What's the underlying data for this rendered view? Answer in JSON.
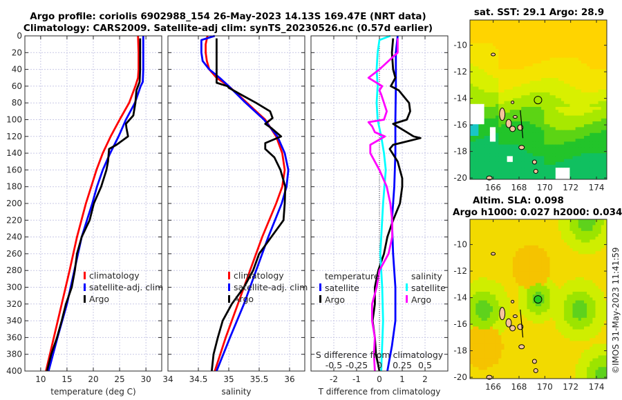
{
  "title": {
    "line1": "Argo profile: coriolis 6902988_154 26-May-2023 14.13S 169.47E (NRT data)",
    "line2": "Climatology: CARS2009. Satellite-adj clim: synTS_20230526.nc (0.57d earlier)"
  },
  "copyright": "©IMOS 31-May-2023 11:41:59",
  "colors": {
    "climatology": "#ff0000",
    "satellite": "#0000ff",
    "argo": "#000000",
    "sal_satellite": "#00ffff",
    "sal_argo": "#ff00ff",
    "land": "#f4c49c"
  },
  "chart_data": [
    {
      "type": "line",
      "name": "temperature-profile",
      "xlabel": "temperature (deg C)",
      "ylabel": "",
      "xlim": [
        7,
        33
      ],
      "ylim": [
        0,
        400
      ],
      "y_reversed": true,
      "xticks": [
        10,
        15,
        20,
        25,
        30
      ],
      "yticks": [
        0,
        20,
        40,
        60,
        80,
        100,
        120,
        140,
        160,
        180,
        200,
        220,
        240,
        260,
        280,
        300,
        320,
        340,
        360,
        380,
        400
      ],
      "grid": true,
      "legend": {
        "placement": "center-right",
        "entries": [
          "climatology",
          "satellite-adj. clim",
          "Argo"
        ]
      },
      "series": [
        {
          "name": "climatology",
          "color": "#ff0000",
          "depth": [
            0,
            20,
            40,
            50,
            60,
            80,
            100,
            120,
            140,
            160,
            180,
            200,
            240,
            280,
            320,
            360,
            400
          ],
          "values": [
            28.5,
            28.6,
            28.6,
            28.5,
            28.0,
            26.8,
            25.0,
            23.3,
            21.8,
            20.6,
            19.6,
            18.6,
            16.9,
            15.5,
            14.0,
            12.5,
            11.0
          ]
        },
        {
          "name": "satellite-adj. clim",
          "color": "#0000ff",
          "depth": [
            0,
            20,
            40,
            55,
            60,
            80,
            100,
            120,
            140,
            160,
            180,
            200,
            240,
            280,
            320,
            360,
            400
          ],
          "values": [
            29.5,
            29.5,
            29.5,
            29.4,
            29.0,
            27.9,
            26.2,
            24.8,
            23.2,
            21.8,
            20.7,
            19.8,
            17.8,
            16.4,
            15.0,
            13.2,
            11.5
          ]
        },
        {
          "name": "Argo",
          "color": "#000000",
          "depth": [
            3,
            20,
            40,
            55,
            65,
            80,
            95,
            105,
            110,
            120,
            125,
            130,
            135,
            150,
            160,
            180,
            200,
            220,
            240,
            260,
            280,
            300,
            320,
            340,
            360,
            380,
            400
          ],
          "values": [
            28.9,
            28.9,
            28.9,
            28.8,
            28.2,
            28.0,
            27.6,
            26.2,
            26.3,
            26.6,
            25.5,
            24.4,
            23.0,
            22.8,
            22.5,
            21.5,
            20.1,
            19.3,
            17.8,
            16.9,
            16.5,
            15.9,
            14.8,
            14.0,
            13.1,
            12.0,
            11.2
          ]
        }
      ]
    },
    {
      "type": "line",
      "name": "salinity-profile",
      "xlabel": "salinity",
      "xlim": [
        34,
        36.25
      ],
      "ylim": [
        0,
        400
      ],
      "y_reversed": true,
      "xticks": [
        34,
        34.5,
        35,
        35.5,
        36
      ],
      "grid": true,
      "legend": {
        "placement": "center-right",
        "entries": [
          "climatology",
          "satellite-adj. clim",
          "Argo"
        ]
      },
      "series": [
        {
          "name": "climatology",
          "color": "#ff0000",
          "depth": [
            0,
            10,
            20,
            30,
            40,
            50,
            60,
            80,
            100,
            120,
            140,
            160,
            180,
            200,
            240,
            280,
            320,
            360,
            400
          ],
          "values": [
            34.65,
            34.62,
            34.62,
            34.64,
            34.68,
            34.8,
            35.0,
            35.3,
            35.6,
            35.78,
            35.88,
            35.92,
            35.88,
            35.78,
            35.55,
            35.35,
            35.15,
            34.95,
            34.77
          ]
        },
        {
          "name": "satellite-adj. clim",
          "color": "#0000ff",
          "depth": [
            0,
            5,
            20,
            30,
            40,
            50,
            60,
            80,
            100,
            120,
            140,
            160,
            180,
            200,
            240,
            280,
            320,
            360,
            400
          ],
          "values": [
            34.77,
            34.55,
            34.55,
            34.57,
            34.68,
            34.85,
            35.0,
            35.28,
            35.58,
            35.8,
            35.92,
            35.98,
            35.95,
            35.87,
            35.65,
            35.45,
            35.25,
            35.02,
            34.8
          ]
        },
        {
          "name": "Argo",
          "color": "#000000",
          "depth": [
            3,
            20,
            40,
            56,
            60,
            62,
            70,
            80,
            90,
            98,
            105,
            110,
            120,
            128,
            135,
            145,
            160,
            180,
            200,
            220,
            240,
            260,
            280,
            300,
            320,
            340,
            360,
            380,
            400
          ],
          "values": [
            34.8,
            34.8,
            34.8,
            34.8,
            34.98,
            35.0,
            35.2,
            35.45,
            35.68,
            35.72,
            35.6,
            35.7,
            35.86,
            35.6,
            35.6,
            35.75,
            35.85,
            35.93,
            35.92,
            35.9,
            35.7,
            35.5,
            35.4,
            35.25,
            35.05,
            34.9,
            34.82,
            34.75,
            34.72
          ]
        }
      ]
    },
    {
      "type": "line",
      "name": "difference-profile",
      "xlabel": "T difference from climatology",
      "x2label": "S difference from climatology",
      "xlim": [
        -3,
        3
      ],
      "x2lim": [
        -0.75,
        0.75
      ],
      "ylim": [
        0,
        400
      ],
      "y_reversed": true,
      "xticks": [
        -2,
        -1,
        0,
        1,
        2
      ],
      "x2ticks": [
        -0.5,
        -0.25,
        0,
        0.25,
        0.5
      ],
      "x2ticklabels": [
        "-0.5",
        "-0.25",
        "0",
        "0.25",
        "0.5"
      ],
      "grid": true,
      "legend": {
        "placement": "bottom-center",
        "temperature_header": "temperature",
        "salinity_header": "salinity",
        "entries": [
          "satellite",
          "Argo",
          "satellite",
          "Argo"
        ]
      },
      "series": [
        {
          "name": "temperature satellite",
          "color": "#0000ff",
          "axis": "T",
          "depth": [
            0,
            20,
            60,
            100,
            140,
            180,
            220,
            260,
            300,
            340,
            370,
            400
          ],
          "values": [
            0.8,
            0.72,
            0.72,
            0.7,
            0.7,
            0.65,
            0.55,
            0.6,
            0.7,
            0.7,
            0.55,
            0.35
          ]
        },
        {
          "name": "temperature Argo",
          "color": "#000000",
          "axis": "T",
          "depth": [
            3,
            20,
            40,
            50,
            60,
            65,
            70,
            80,
            90,
            100,
            105,
            110,
            115,
            120,
            122,
            125,
            130,
            135,
            150,
            160,
            170,
            180,
            200,
            220,
            240,
            260,
            280,
            300,
            320,
            340,
            360,
            380,
            400
          ],
          "values": [
            0.6,
            0.55,
            0.6,
            0.7,
            0.5,
            0.85,
            1.0,
            1.3,
            1.35,
            1.2,
            0.6,
            0.9,
            1.2,
            1.5,
            1.8,
            1.35,
            0.6,
            0.45,
            0.8,
            0.9,
            1.0,
            1.0,
            0.9,
            0.6,
            0.35,
            0.2,
            -0.05,
            -0.2,
            -0.2,
            -0.3,
            -0.2,
            -0.15,
            0.0
          ]
        },
        {
          "name": "salinity satellite",
          "color": "#00ffff",
          "axis": "S",
          "depth": [
            0,
            5,
            20,
            40,
            60,
            80,
            100,
            120,
            140,
            160,
            200,
            260,
            300,
            340,
            400
          ],
          "values": [
            0.12,
            0.0,
            -0.02,
            -0.03,
            -0.02,
            -0.03,
            -0.02,
            0.02,
            0.05,
            0.07,
            0.04,
            0.01,
            0.03,
            0.04,
            0.02
          ]
        },
        {
          "name": "salinity Argo",
          "color": "#ff00ff",
          "axis": "S",
          "depth": [
            3,
            20,
            30,
            40,
            50,
            60,
            65,
            70,
            80,
            90,
            100,
            103,
            108,
            115,
            120,
            130,
            140,
            160,
            180,
            200,
            220,
            240,
            260,
            280,
            300,
            320,
            340,
            360,
            380,
            400
          ],
          "values": [
            0.2,
            0.2,
            0.1,
            0.0,
            -0.12,
            0.03,
            0.0,
            0.02,
            0.05,
            0.08,
            0.05,
            -0.12,
            -0.08,
            -0.05,
            0.06,
            -0.1,
            -0.1,
            0.0,
            0.08,
            0.12,
            0.14,
            0.14,
            0.1,
            0.0,
            -0.03,
            -0.08,
            -0.08,
            -0.05,
            -0.06,
            -0.05
          ]
        }
      ]
    },
    {
      "type": "heatmap",
      "name": "sst-map",
      "title": "sat. SST: 29.1 Argo: 28.9",
      "xlim": [
        164.2,
        174.8
      ],
      "ylim": [
        -20.1,
        -8.1
      ],
      "xticks": [
        166,
        168,
        170,
        172,
        174
      ],
      "yticks": [
        -10,
        -12,
        -14,
        -16,
        -18,
        -20
      ],
      "argo_position": {
        "lon": 169.47,
        "lat": -14.13
      },
      "colormap": "cyan-green-yellow-orange",
      "pattern": "warm (orange/yellow) in north, cooler (green) south of -16; gaps (white) in SW"
    },
    {
      "type": "heatmap",
      "name": "sla-map",
      "title_line1": "Altim. SLA: 0.098",
      "title_line2": "Argo h1000: 0.027 h2000: 0.034",
      "xlim": [
        164.2,
        174.8
      ],
      "ylim": [
        -20.1,
        -8.1
      ],
      "xticks": [
        166,
        168,
        170,
        172,
        174
      ],
      "yticks": [
        -10,
        -12,
        -14,
        -16,
        -18,
        -20
      ],
      "argo_position": {
        "lon": 169.47,
        "lat": -14.13
      },
      "colormap": "green-yellow-orange",
      "pattern": "mostly yellow/orange, green patches near 165E 15S and 172.8E 15S"
    }
  ]
}
